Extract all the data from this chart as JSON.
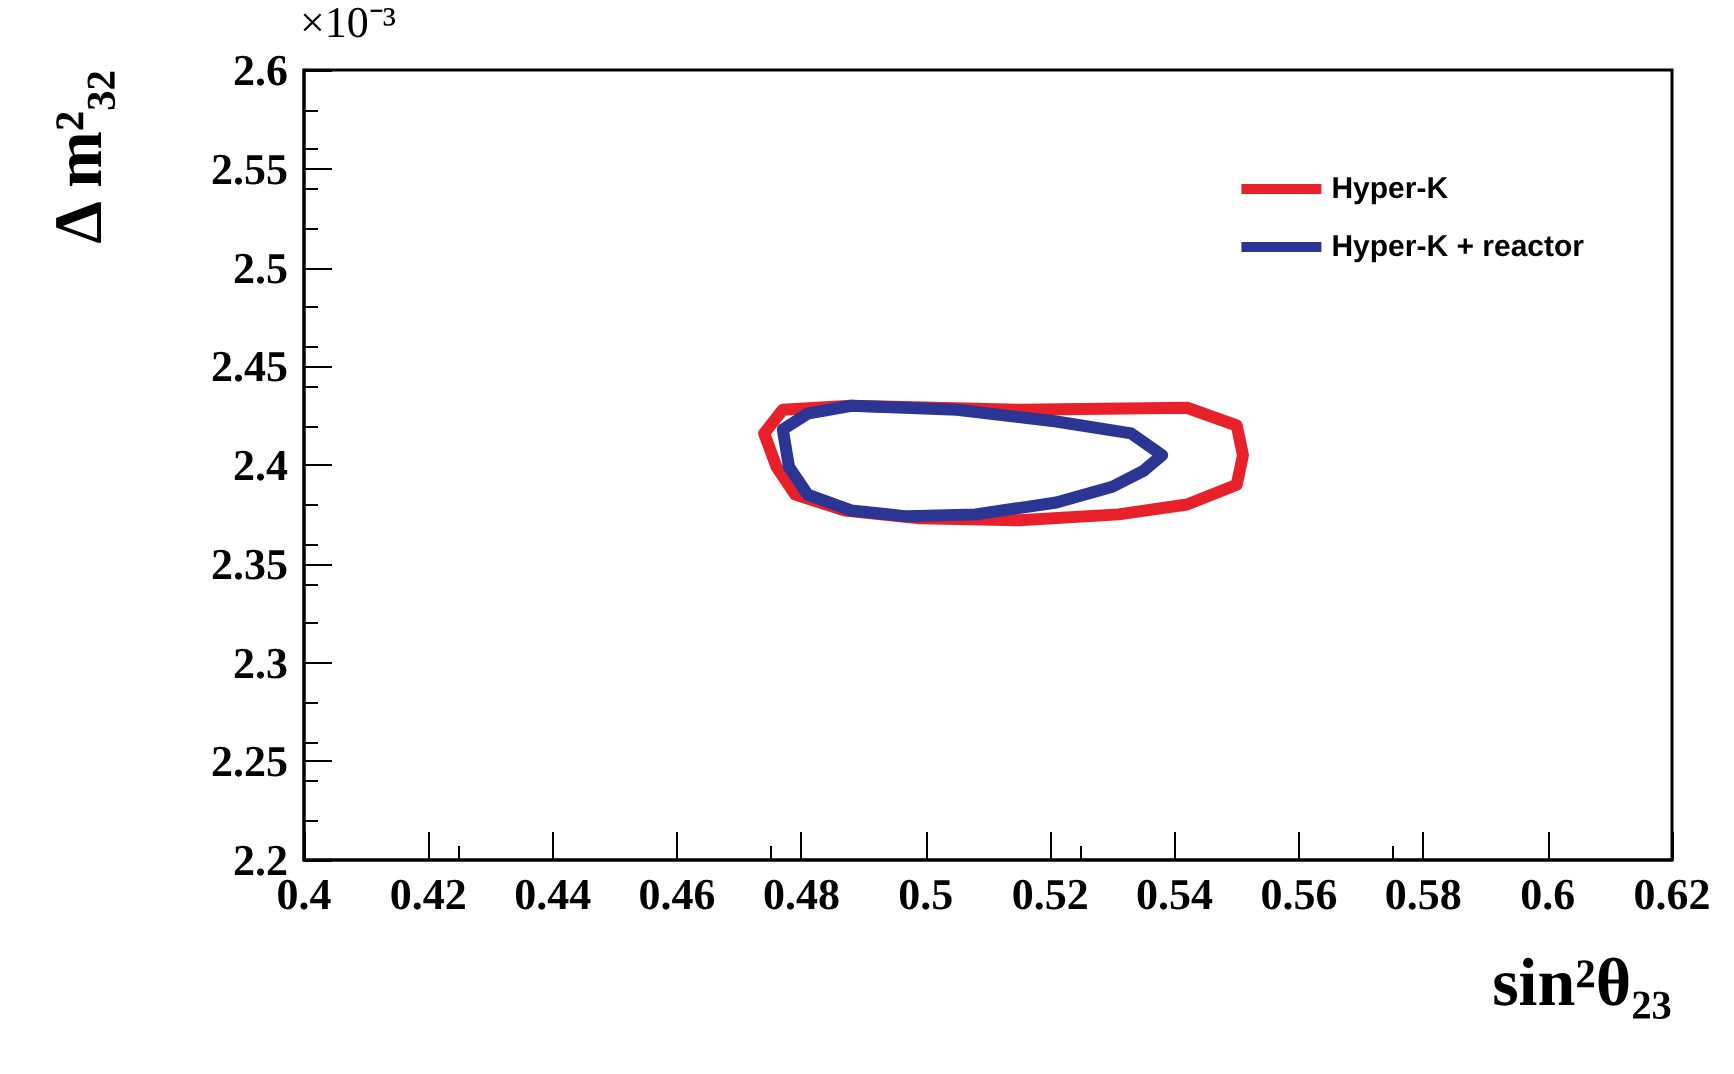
{
  "chart_data": {
    "type": "line",
    "xlabel": "sin²θ₂₃",
    "ylabel": "Δ m²₃₂",
    "annotations": [
      "×10⁻³"
    ],
    "xlim": [
      0.4,
      0.62
    ],
    "xticks": [
      0.4,
      0.42,
      0.44,
      0.46,
      0.48,
      0.5,
      0.52,
      0.54,
      0.56,
      0.58,
      0.6,
      0.62
    ],
    "ylim": [
      2.2,
      2.6
    ],
    "yticks": [
      2.2,
      2.25,
      2.3,
      2.35,
      2.4,
      2.45,
      2.5,
      2.55,
      2.6
    ],
    "grid": false,
    "legend": "top right",
    "marker": "none",
    "line_style": "solid",
    "series": [
      {
        "name": "Hyper-K",
        "color": "#e8202a",
        "x": [
          0.474,
          0.477,
          0.488,
          0.515,
          0.542,
          0.55,
          0.551,
          null,
          0.474,
          0.476,
          0.479,
          0.487,
          0.499,
          0.515,
          0.531,
          0.542,
          0.55,
          0.551
        ],
        "values": [
          2.416,
          2.428,
          2.43,
          2.428,
          2.429,
          2.42,
          2.405,
          null,
          2.416,
          2.399,
          2.385,
          2.377,
          2.373,
          2.372,
          2.375,
          2.38,
          2.39,
          2.405
        ]
      },
      {
        "name": "Hyper-K + reactor",
        "color": "#2b3593",
        "x": [
          0.477,
          0.481,
          0.488,
          0.505,
          0.521,
          0.533,
          0.538,
          null,
          0.477,
          0.478,
          0.481,
          0.488,
          0.497,
          0.508,
          0.521,
          0.53,
          0.535,
          0.538
        ],
        "values": [
          2.418,
          2.426,
          2.43,
          2.428,
          2.422,
          2.416,
          2.405,
          null,
          2.418,
          2.399,
          2.385,
          2.377,
          2.374,
          2.375,
          2.381,
          2.389,
          2.397,
          2.405
        ]
      }
    ]
  }
}
